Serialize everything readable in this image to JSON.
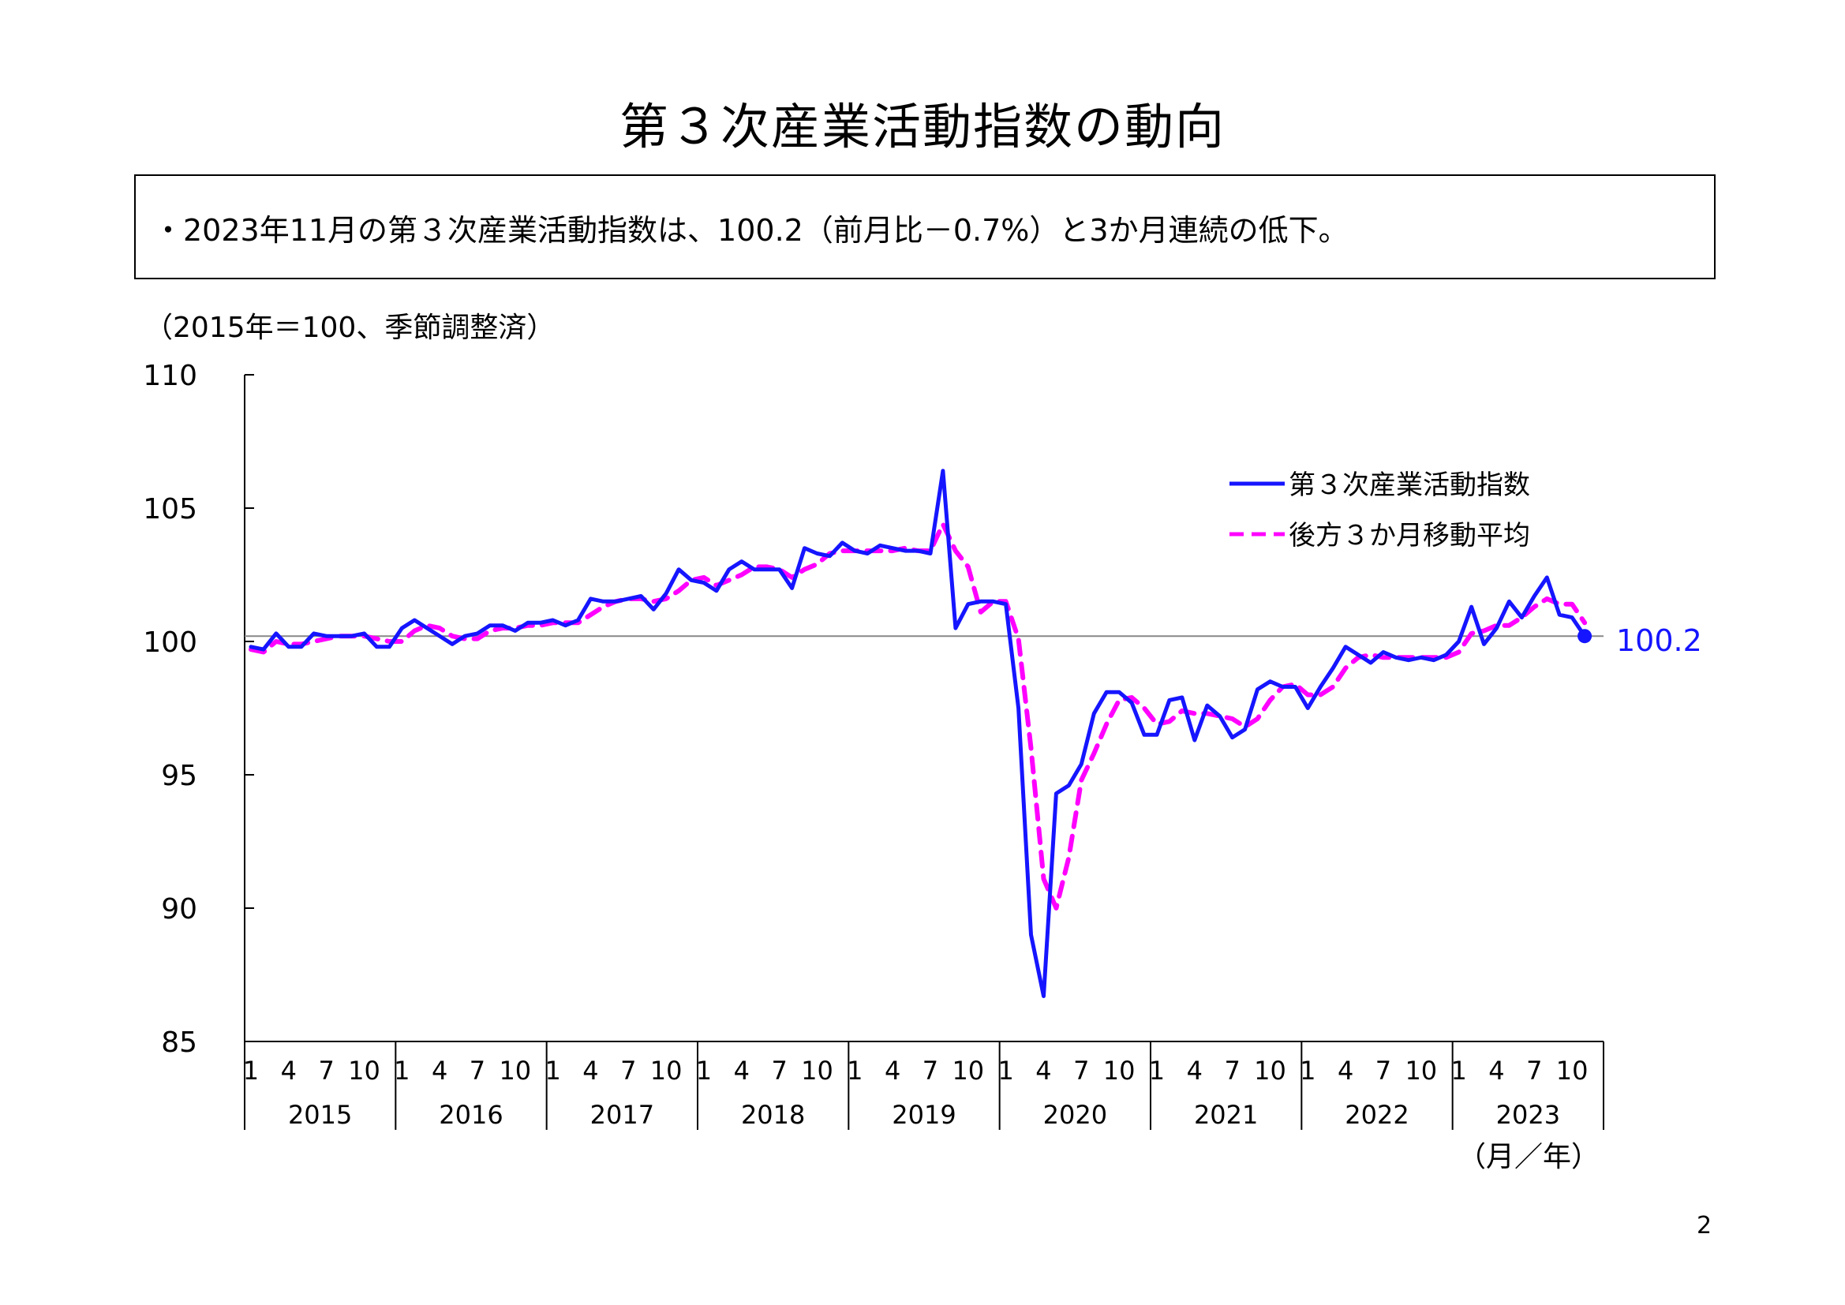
{
  "page": {
    "title": "第３次産業活動指数の動向",
    "summary": "・2023年11月の第３次産業活動指数は、100.2（前月比－0.7%）と3か月連続の低下。",
    "page_number": "2"
  },
  "chart_data": {
    "type": "line",
    "unit_note": "（2015年＝100、季節調整済）",
    "x_axis_note": "（月／年）",
    "ylim": [
      85,
      110
    ],
    "yticks": [
      85,
      90,
      95,
      100,
      105,
      110
    ],
    "years": [
      "2015",
      "2016",
      "2017",
      "2018",
      "2019",
      "2020",
      "2021",
      "2022",
      "2023"
    ],
    "month_ticks": [
      "1",
      "4",
      "7",
      "10"
    ],
    "reference_line": 100.2,
    "end_label": "100.2",
    "series": [
      {
        "name": "第３次産業活動指数",
        "color": "#1515ff",
        "style": "solid",
        "values": [
          99.8,
          99.7,
          100.3,
          99.8,
          99.8,
          100.3,
          100.2,
          100.2,
          100.2,
          100.3,
          99.8,
          99.8,
          100.5,
          100.8,
          100.5,
          100.2,
          99.9,
          100.2,
          100.3,
          100.6,
          100.6,
          100.4,
          100.7,
          100.7,
          100.8,
          100.6,
          100.8,
          101.6,
          101.5,
          101.5,
          101.6,
          101.7,
          101.2,
          101.8,
          102.7,
          102.3,
          102.2,
          101.9,
          102.7,
          103.0,
          102.7,
          102.7,
          102.7,
          102.0,
          103.5,
          103.3,
          103.2,
          103.7,
          103.4,
          103.3,
          103.6,
          103.5,
          103.4,
          103.4,
          103.3,
          106.4,
          100.5,
          101.4,
          101.5,
          101.5,
          101.4,
          97.5,
          89.0,
          86.7,
          94.3,
          94.6,
          95.4,
          97.3,
          98.1,
          98.1,
          97.7,
          96.5,
          96.5,
          97.8,
          97.9,
          96.3,
          97.6,
          97.2,
          96.4,
          96.7,
          98.2,
          98.5,
          98.3,
          98.3,
          97.5,
          98.3,
          99.0,
          99.8,
          99.5,
          99.2,
          99.6,
          99.4,
          99.3,
          99.4,
          99.3,
          99.5,
          100.0,
          101.3,
          99.9,
          100.5,
          101.5,
          100.9,
          101.7,
          102.4,
          101.0,
          100.9,
          100.2
        ]
      },
      {
        "name": "後方３か月移動平均",
        "color": "#ff00ff",
        "style": "dashed",
        "values": [
          99.7,
          99.6,
          100.0,
          99.9,
          99.9,
          100.0,
          100.1,
          100.2,
          100.2,
          100.2,
          100.1,
          100.0,
          100.0,
          100.4,
          100.6,
          100.5,
          100.2,
          100.1,
          100.1,
          100.4,
          100.5,
          100.5,
          100.6,
          100.6,
          100.7,
          100.7,
          100.7,
          101.0,
          101.3,
          101.5,
          101.6,
          101.6,
          101.5,
          101.6,
          101.9,
          102.3,
          102.4,
          102.1,
          102.3,
          102.5,
          102.8,
          102.8,
          102.7,
          102.4,
          102.7,
          102.9,
          103.3,
          103.4,
          103.4,
          103.4,
          103.4,
          103.4,
          103.5,
          103.4,
          103.4,
          104.4,
          103.4,
          102.8,
          101.1,
          101.5,
          101.5,
          100.1,
          96.0,
          91.1,
          90.0,
          91.9,
          94.8,
          95.8,
          96.9,
          97.8,
          97.9,
          97.5,
          96.9,
          97.0,
          97.4,
          97.3,
          97.3,
          97.2,
          97.1,
          96.8,
          97.1,
          97.8,
          98.3,
          98.4,
          98.0,
          98.0,
          98.3,
          99.0,
          99.4,
          99.5,
          99.4,
          99.4,
          99.4,
          99.4,
          99.4,
          99.4,
          99.6,
          100.3,
          100.4,
          100.6,
          100.6,
          100.9,
          101.3,
          101.6,
          101.4,
          101.4,
          100.7
        ]
      }
    ]
  }
}
